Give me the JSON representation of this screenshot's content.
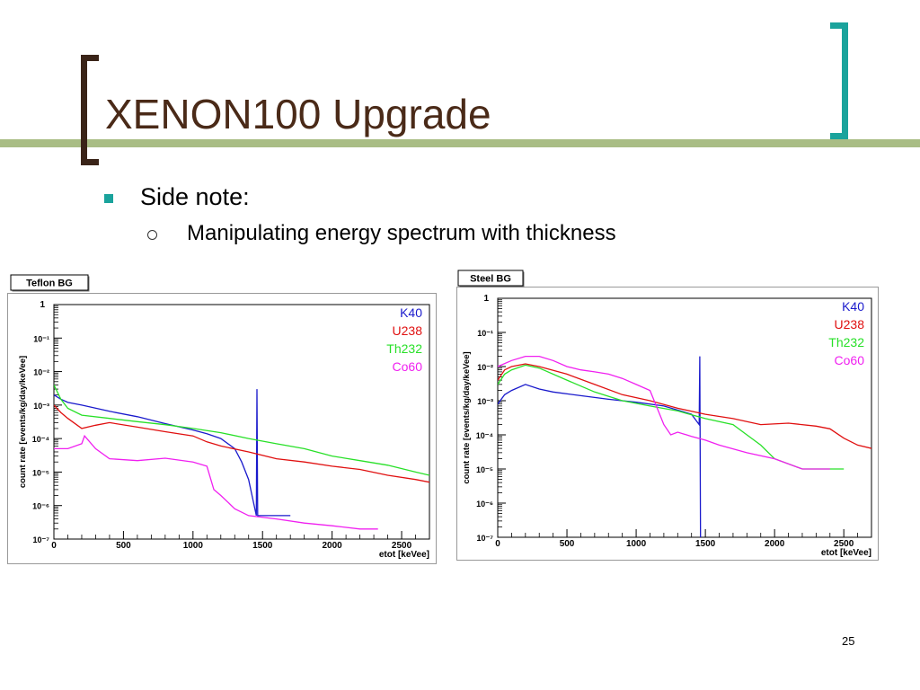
{
  "slide": {
    "title": "XENON100 Upgrade",
    "bullet": "Side note:",
    "sub_bullet": "Manipulating energy spectrum with thickness",
    "page_number": "25",
    "colors": {
      "bracket_dark": "#3a2418",
      "bracket_accent": "#1aa39c",
      "band": "#a9bd85",
      "bullet": "#1aa39c"
    }
  },
  "chart_data": [
    {
      "type": "line",
      "title": "Teflon BG",
      "xlabel": "etot [keVee]",
      "ylabel": "count rate [events/kg/day/keVee]",
      "xlim": [
        0,
        2700
      ],
      "ylim": [
        1e-07,
        1
      ],
      "yscale": "log",
      "x_ticks": [
        "0",
        "500",
        "1000",
        "1500",
        "2000",
        "2500"
      ],
      "y_ticks": [
        "1",
        "10⁻¹",
        "10⁻²",
        "10⁻³",
        "10⁻⁴",
        "10⁻⁵",
        "10⁻⁶",
        "10⁻⁷"
      ],
      "legend": "top-right",
      "series": [
        {
          "name": "K40",
          "color": "#1a1acc",
          "x": [
            0,
            50,
            100,
            200,
            400,
            600,
            800,
            1000,
            1100,
            1200,
            1300,
            1350,
            1400,
            1455,
            1460,
            1465,
            1500,
            1700
          ],
          "y": [
            0.002,
            0.0015,
            0.0012,
            0.001,
            0.00065,
            0.00045,
            0.00028,
            0.00018,
            0.00014,
            0.0001,
            5e-05,
            2e-05,
            6e-06,
            5e-07,
            0.003,
            5e-07,
            5e-07,
            5e-07
          ]
        },
        {
          "name": "U238",
          "color": "#e01010",
          "x": [
            0,
            50,
            100,
            200,
            300,
            400,
            600,
            800,
            1000,
            1100,
            1200,
            1400,
            1600,
            1800,
            2000,
            2200,
            2400,
            2600,
            2700
          ],
          "y": [
            0.001,
            0.0006,
            0.0004,
            0.0002,
            0.00025,
            0.0003,
            0.00022,
            0.00016,
            0.00012,
            8e-05,
            6e-05,
            4e-05,
            2.5e-05,
            2e-05,
            1.5e-05,
            1.2e-05,
            8e-06,
            6e-06,
            5e-06
          ]
        },
        {
          "name": "Th232",
          "color": "#28e028",
          "x": [
            0,
            50,
            100,
            200,
            400,
            600,
            800,
            1000,
            1200,
            1400,
            1600,
            1800,
            2000,
            2200,
            2400,
            2600,
            2700
          ],
          "y": [
            0.004,
            0.0015,
            0.0008,
            0.0005,
            0.0004,
            0.00032,
            0.00026,
            0.0002,
            0.00015,
            0.0001,
            7e-05,
            5e-05,
            3e-05,
            2.2e-05,
            1.6e-05,
            1e-05,
            8e-06
          ]
        },
        {
          "name": "Co60",
          "color": "#f020f0",
          "x": [
            0,
            100,
            200,
            220,
            300,
            400,
            600,
            800,
            1000,
            1100,
            1150,
            1200,
            1300,
            1400,
            1600,
            1800,
            2000,
            2200,
            2330
          ],
          "y": [
            5e-05,
            5e-05,
            7e-05,
            0.00012,
            5e-05,
            2.5e-05,
            2.2e-05,
            2.6e-05,
            2e-05,
            1.5e-05,
            3e-06,
            2e-06,
            8e-07,
            5e-07,
            4e-07,
            3e-07,
            2.5e-07,
            2e-07,
            2e-07
          ]
        }
      ]
    },
    {
      "type": "line",
      "title": "Steel BG",
      "xlabel": "etot [keVee]",
      "ylabel": "count rate [events/kg/day/keVee]",
      "xlim": [
        0,
        2700
      ],
      "ylim": [
        1e-07,
        1
      ],
      "yscale": "log",
      "x_ticks": [
        "0",
        "500",
        "1000",
        "1500",
        "2000",
        "2500"
      ],
      "y_ticks": [
        "1",
        "10⁻¹",
        "10⁻²",
        "10⁻³",
        "10⁻⁴",
        "10⁻⁵",
        "10⁻⁶",
        "10⁻⁷"
      ],
      "legend": "top-right",
      "series": [
        {
          "name": "K40",
          "color": "#1a1acc",
          "x": [
            0,
            50,
            100,
            200,
            300,
            400,
            600,
            800,
            1000,
            1200,
            1400,
            1455,
            1460,
            1465,
            1470
          ],
          "y": [
            0.0008,
            0.0015,
            0.002,
            0.003,
            0.0022,
            0.0018,
            0.0014,
            0.0011,
            0.0009,
            0.0007,
            0.0004,
            0.0002,
            0.02,
            1e-07,
            1e-07
          ]
        },
        {
          "name": "U238",
          "color": "#e01010",
          "x": [
            0,
            50,
            100,
            200,
            300,
            500,
            700,
            900,
            1100,
            1300,
            1500,
            1700,
            1900,
            2100,
            2300,
            2400,
            2500,
            2600,
            2700
          ],
          "y": [
            0.004,
            0.008,
            0.01,
            0.012,
            0.01,
            0.006,
            0.003,
            0.0015,
            0.001,
            0.0006,
            0.0004,
            0.0003,
            0.0002,
            0.00022,
            0.00018,
            0.00015,
            8e-05,
            5e-05,
            4e-05
          ]
        },
        {
          "name": "Th232",
          "color": "#28e028",
          "x": [
            0,
            50,
            100,
            200,
            300,
            500,
            700,
            900,
            1100,
            1300,
            1500,
            1700,
            1800,
            1900,
            2000,
            2200,
            2400,
            2500
          ],
          "y": [
            0.003,
            0.006,
            0.008,
            0.011,
            0.009,
            0.004,
            0.0018,
            0.001,
            0.0007,
            0.0005,
            0.0003,
            0.0002,
            0.0001,
            5e-05,
            2e-05,
            1e-05,
            1e-05,
            1e-05
          ]
        },
        {
          "name": "Co60",
          "color": "#f020f0",
          "x": [
            0,
            100,
            200,
            300,
            400,
            500,
            600,
            700,
            800,
            900,
            1000,
            1100,
            1200,
            1250,
            1300,
            1400,
            1500,
            1600,
            1800,
            2000,
            2200,
            2400
          ],
          "y": [
            0.01,
            0.015,
            0.02,
            0.02,
            0.015,
            0.01,
            0.008,
            0.007,
            0.006,
            0.0045,
            0.003,
            0.002,
            0.0002,
            0.0001,
            0.00012,
            9e-05,
            7e-05,
            5e-05,
            3e-05,
            2e-05,
            1e-05,
            1e-05
          ]
        }
      ]
    }
  ]
}
